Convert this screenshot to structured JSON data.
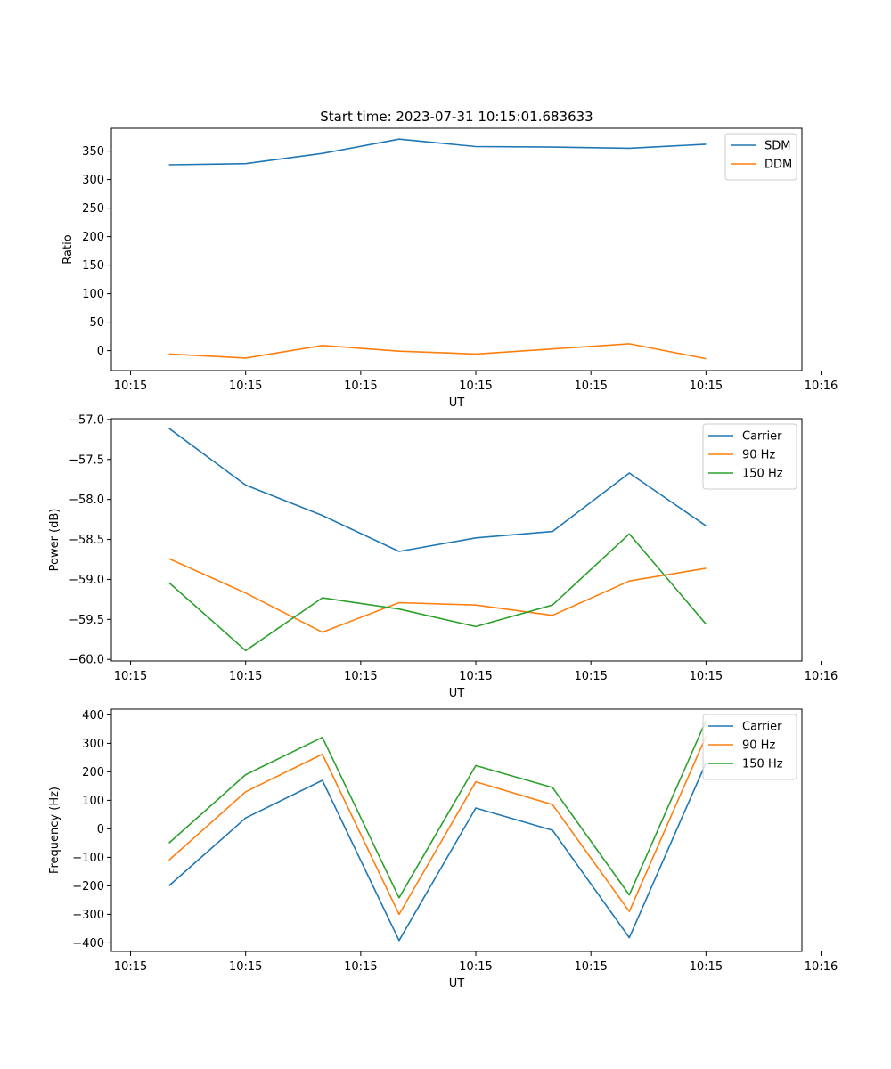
{
  "figure_title": "Start time: 2023-07-31 10:15:01.683633",
  "colors": {
    "blue": "#1f77b4",
    "orange": "#ff7f0e",
    "green": "#2ca02c"
  },
  "chart_data": [
    {
      "type": "line",
      "title": "Start time: 2023-07-31 10:15:01.683633",
      "xlabel": "UT",
      "ylabel": "Ratio",
      "x": [
        1,
        2,
        3,
        4,
        5,
        6,
        7,
        8
      ],
      "xlim": [
        0.25,
        9.25
      ],
      "xticks": [
        0.5,
        2,
        3.5,
        5,
        6.5,
        8,
        9.5
      ],
      "xtick_labels": [
        "10:15",
        "10:15",
        "10:15",
        "10:15",
        "10:15",
        "10:15",
        "10:16"
      ],
      "ylim": [
        -35,
        390
      ],
      "yticks": [
        0,
        50,
        100,
        150,
        200,
        250,
        300,
        350
      ],
      "ytick_labels": [
        "0",
        "50",
        "100",
        "150",
        "200",
        "250",
        "300",
        "350"
      ],
      "legend_position": "top-right",
      "series": [
        {
          "name": "SDM",
          "color": "#1f77b4",
          "values": [
            326,
            328,
            346,
            371,
            358,
            357,
            355,
            362
          ]
        },
        {
          "name": "DDM",
          "color": "#ff7f0e",
          "values": [
            -6,
            -13,
            9,
            -1,
            -6,
            3,
            12,
            -14
          ]
        }
      ]
    },
    {
      "type": "line",
      "title": "",
      "xlabel": "UT",
      "ylabel": "Power (dB)",
      "x": [
        1,
        2,
        3,
        4,
        5,
        6,
        7,
        8
      ],
      "xlim": [
        0.25,
        9.25
      ],
      "xticks": [
        0.5,
        2,
        3.5,
        5,
        6.5,
        8,
        9.5
      ],
      "xtick_labels": [
        "10:15",
        "10:15",
        "10:15",
        "10:15",
        "10:15",
        "10:15",
        "10:16"
      ],
      "ylim": [
        -60.02,
        -56.99
      ],
      "yticks": [
        -60.0,
        -59.5,
        -59.0,
        -58.5,
        -58.0,
        -57.5,
        -57.0
      ],
      "ytick_labels": [
        "−60.0",
        "−59.5",
        "−59.0",
        "−58.5",
        "−58.0",
        "−57.5",
        "−57.0"
      ],
      "legend_position": "top-right",
      "series": [
        {
          "name": "Carrier",
          "color": "#1f77b4",
          "values": [
            -57.11,
            -57.82,
            -58.2,
            -58.65,
            -58.48,
            -58.4,
            -57.67,
            -58.33
          ]
        },
        {
          "name": "90 Hz",
          "color": "#ff7f0e",
          "values": [
            -58.74,
            -59.17,
            -59.66,
            -59.29,
            -59.32,
            -59.45,
            -59.02,
            -58.86
          ]
        },
        {
          "name": "150 Hz",
          "color": "#2ca02c",
          "values": [
            -59.04,
            -59.89,
            -59.23,
            -59.37,
            -59.59,
            -59.32,
            -58.43,
            -59.56
          ]
        }
      ]
    },
    {
      "type": "line",
      "title": "",
      "xlabel": "UT",
      "ylabel": "Frequency (Hz)",
      "x": [
        1,
        2,
        3,
        4,
        5,
        6,
        7,
        8
      ],
      "xlim": [
        0.25,
        9.25
      ],
      "xticks": [
        0.5,
        2,
        3.5,
        5,
        6.5,
        8,
        9.5
      ],
      "xtick_labels": [
        "10:15",
        "10:15",
        "10:15",
        "10:15",
        "10:15",
        "10:15",
        "10:16"
      ],
      "ylim": [
        -430,
        420
      ],
      "yticks": [
        -400,
        -300,
        -200,
        -100,
        0,
        100,
        200,
        300,
        400
      ],
      "ytick_labels": [
        "−400",
        "−300",
        "−200",
        "−100",
        "0",
        "100",
        "200",
        "300",
        "400"
      ],
      "legend_position": "top-right",
      "series": [
        {
          "name": "Carrier",
          "color": "#1f77b4",
          "values": [
            -200,
            38,
            170,
            -392,
            73,
            -5,
            -382,
            232
          ]
        },
        {
          "name": "90 Hz",
          "color": "#ff7f0e",
          "values": [
            -110,
            130,
            262,
            -300,
            165,
            85,
            -290,
            325
          ]
        },
        {
          "name": "150 Hz",
          "color": "#2ca02c",
          "values": [
            -50,
            190,
            321,
            -242,
            222,
            145,
            -232,
            380
          ]
        }
      ]
    }
  ]
}
